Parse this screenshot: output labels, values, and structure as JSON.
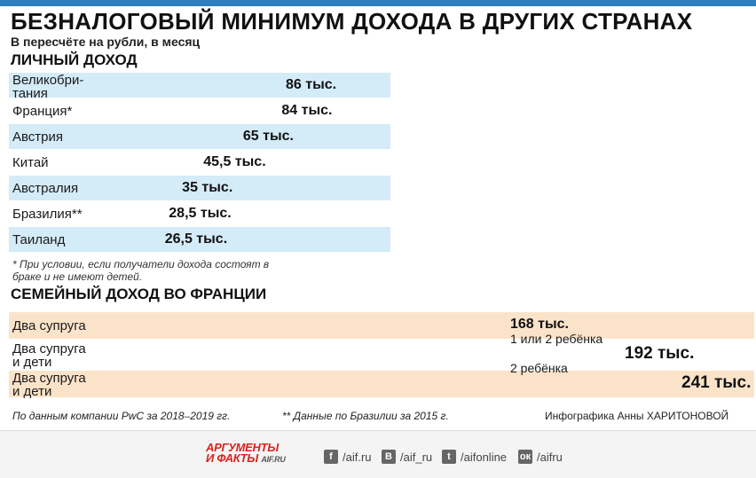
{
  "header": {
    "title": "БЕЗНАЛОГОВЫЙ МИНИМУМ ДОХОДА В ДРУГИХ СТРАНАХ",
    "subtitle": "В пересчёте на рубли, в месяц"
  },
  "colors": {
    "bar": "#1a8ad4",
    "accent": "#2c7fc1",
    "marker_ring": "#f0a030",
    "row_alt": "#d4ebf8",
    "family_row": "#fbe3c9",
    "brand_red": "#d9231f"
  },
  "chart_data": [
    {
      "type": "bar",
      "title": "ЛИЧНЫЙ ДОХОД",
      "categories": [
        "Велико­бри-\nтания",
        "Франция*",
        "Австрия",
        "Китай",
        "Австралия",
        "Бразилия**",
        "Таиланд"
      ],
      "values": [
        86,
        84,
        65,
        45.5,
        35,
        28.5,
        26.5
      ],
      "value_labels": [
        "86 тыс.",
        "84 тыс.",
        "65 тыс.",
        "45,5 тыс.",
        "35 тыс.",
        "28,5 тыс.",
        "26,5 тыс."
      ],
      "orientation": "horizontal",
      "xlim": [
        0,
        86
      ]
    },
    {
      "type": "bar",
      "title": "СЕМЕЙНЫЙ ДОХОД ВО ФРАНЦИИ",
      "categories": [
        "Два супруга",
        "Два супруга\nи дети",
        "Два супруга\nи дети"
      ],
      "values": [
        168,
        192,
        241
      ],
      "value_labels": [
        "168 тыс.",
        "192 тыс.",
        "241 тыс."
      ],
      "annotations": [
        "",
        "1 или 2 ребёнка",
        "2 ребёнка"
      ],
      "base_value": 168,
      "orientation": "horizontal",
      "xlim": [
        0,
        241
      ]
    }
  ],
  "note": "* При условии, если получатели дохода состоят в браке и не имеют детей.",
  "footer": {
    "source": "По данным компании PwC за 2018–2019 гг.",
    "brazil_note": "** Данные по Бразилии за 2015 г.",
    "credit": "Инфографика Анны ХАРИТОНОВОЙ"
  },
  "brand": {
    "line1": "АРГУМЕНТЫ",
    "line2": "И ФАКТЫ",
    "domain": "AIF.RU"
  },
  "social": [
    {
      "icon": "facebook-icon",
      "glyph": "f",
      "label": "/aif.ru"
    },
    {
      "icon": "vk-icon",
      "glyph": "В",
      "label": "/aif_ru"
    },
    {
      "icon": "twitter-icon",
      "glyph": "t",
      "label": "/aifonline"
    },
    {
      "icon": "odnoklassniki-icon",
      "glyph": "ок",
      "label": "/aifru"
    }
  ]
}
